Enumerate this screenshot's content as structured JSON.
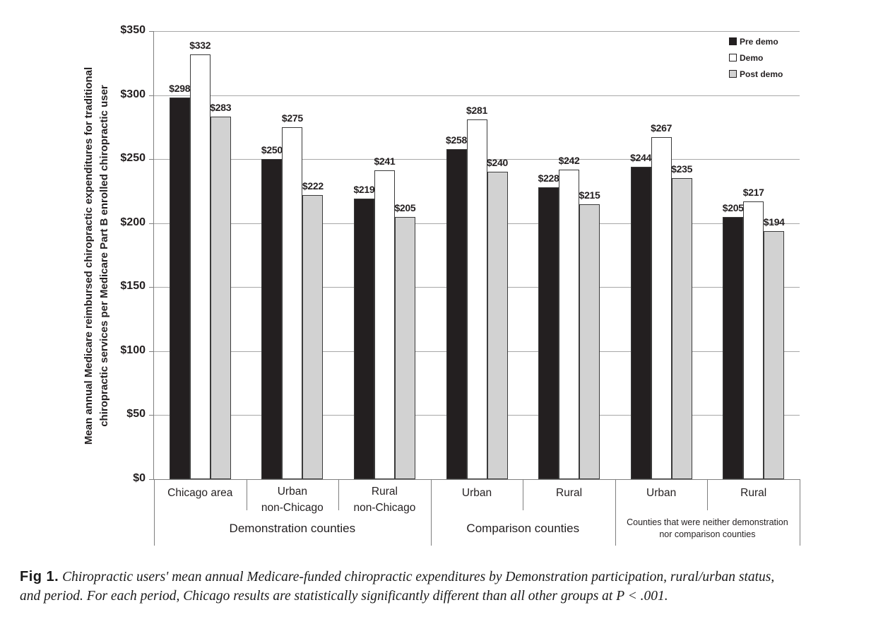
{
  "figure": {
    "caption": {
      "label": "Fig 1.",
      "line1": "Chiropractic users' mean annual Medicare-funded chiropractic expenditures by Demonstration participation, rural/urban status,",
      "line2": "and period. For each period, Chicago results are statistically significantly different than all other groups at P < .001."
    }
  },
  "chart_data": {
    "type": "bar",
    "title": "",
    "ylabel": "Mean annual Medicare reimbursed chiropractic expenditures for traditional chiropractic services per Medicare Part B enrolled chiropractic user",
    "ylabel_lines": [
      "Mean annual Medicare reimbursed chiropractic expenditures for traditional",
      "chiropractic services per Medicare Part B enrolled chiropractic user"
    ],
    "ylim": [
      0,
      350
    ],
    "ytick_interval": 50,
    "yticks": [
      "$350",
      "$300",
      "$250",
      "$200",
      "$150",
      "$100",
      "$50",
      "$0"
    ],
    "value_prefix": "$",
    "grid": true,
    "legend_position": "top-right",
    "categories": [
      "Chicago area",
      "Urban non-Chicago",
      "Rural non-Chicago",
      "Urban",
      "Rural",
      "Urban",
      "Rural"
    ],
    "category_label_lines": [
      [
        "Chicago area"
      ],
      [
        "Urban",
        "non-Chicago"
      ],
      [
        "Rural",
        "non-Chicago"
      ],
      [
        "Urban"
      ],
      [
        "Rural"
      ],
      [
        "Urban"
      ],
      [
        "Rural"
      ]
    ],
    "groups": [
      {
        "span": 3,
        "label_lines": [
          "Demonstration counties"
        ]
      },
      {
        "span": 2,
        "label_lines": [
          "Comparison counties"
        ]
      },
      {
        "span": 2,
        "label_lines": [
          "Counties that were neither demonstration",
          "nor comparison counties"
        ]
      }
    ],
    "series": [
      {
        "name": "Pre demo",
        "color": "#231f20",
        "values": [
          298,
          250,
          219,
          258,
          228,
          244,
          205
        ]
      },
      {
        "name": "Demo",
        "color": "#ffffff",
        "values": [
          332,
          275,
          241,
          281,
          242,
          267,
          217
        ]
      },
      {
        "name": "Post demo",
        "color": "#d2d2d2",
        "values": [
          283,
          222,
          205,
          240,
          215,
          235,
          194
        ]
      }
    ],
    "colors": {
      "bar_border": "#3a3a3a",
      "gridline": "#a8a8a8",
      "axis": "#7f7f7f",
      "text": "#231f20"
    }
  }
}
